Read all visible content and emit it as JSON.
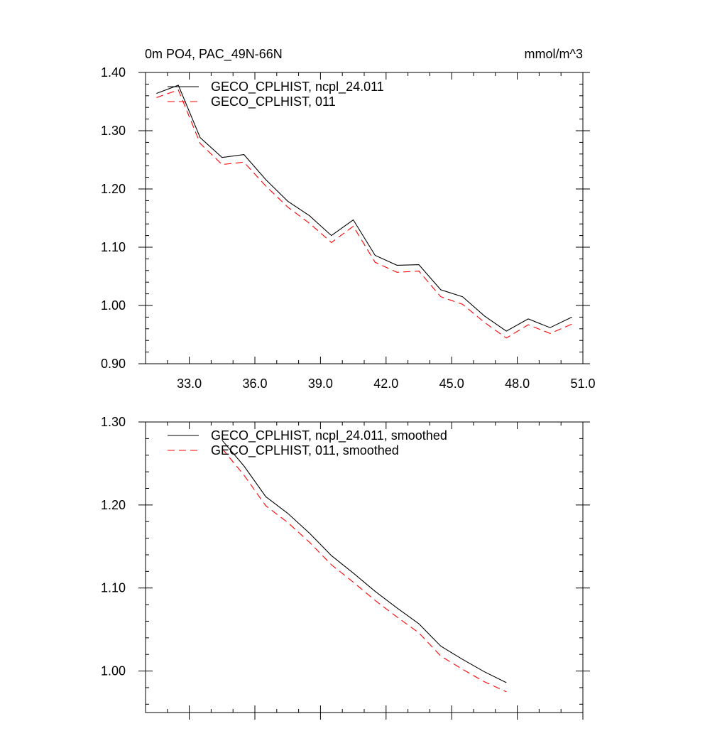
{
  "chart_data": [
    {
      "type": "line",
      "title": "0m PO4, PAC_49N-66N",
      "units": "mmol/m^3",
      "xlabel": "",
      "ylabel": "",
      "xlim": [
        31,
        51
      ],
      "ylim": [
        0.9,
        1.4
      ],
      "xticks": [
        "33.0",
        "36.0",
        "39.0",
        "42.0",
        "45.0",
        "48.0",
        "51.0"
      ],
      "yticks": [
        "0.90",
        "1.00",
        "1.10",
        "1.20",
        "1.30",
        "1.40"
      ],
      "legend": "top-left",
      "grid": false,
      "x": [
        31.5,
        32.5,
        33.5,
        34.5,
        35.5,
        36.5,
        37.5,
        38.5,
        39.5,
        40.5,
        41.5,
        42.5,
        43.5,
        44.5,
        45.5,
        46.5,
        47.5,
        48.5,
        49.5,
        50.5
      ],
      "series": [
        {
          "name": "GECO_CPLHIST, ncpl_24.011",
          "color": "#000000",
          "dash": "solid",
          "values": [
            1.364,
            1.378,
            1.288,
            1.254,
            1.259,
            1.216,
            1.179,
            1.154,
            1.12,
            1.147,
            1.086,
            1.069,
            1.07,
            1.027,
            1.015,
            0.982,
            0.956,
            0.977,
            0.962,
            0.98
          ]
        },
        {
          "name": "GECO_CPLHIST, 011",
          "color": "#ff0000",
          "dash": "dashed",
          "values": [
            1.357,
            1.37,
            1.278,
            1.242,
            1.246,
            1.205,
            1.169,
            1.141,
            1.108,
            1.136,
            1.074,
            1.057,
            1.059,
            1.015,
            1.002,
            0.971,
            0.944,
            0.967,
            0.952,
            0.968
          ]
        }
      ]
    },
    {
      "type": "line",
      "title": "",
      "xlabel": "",
      "ylabel": "",
      "xlim": [
        31,
        51
      ],
      "ylim": [
        0.95,
        1.3
      ],
      "yticks": [
        "1.00",
        "1.10",
        "1.20",
        "1.30"
      ],
      "legend": "top-left",
      "grid": false,
      "x": [
        34.5,
        35.5,
        36.5,
        37.5,
        38.5,
        39.5,
        40.5,
        41.5,
        42.5,
        43.5,
        44.5,
        45.5,
        46.5,
        47.5
      ],
      "series": [
        {
          "name": "GECO_CPLHIST, ncpl_24.011, smoothed",
          "color": "#000000",
          "dash": "solid",
          "values": [
            1.278,
            1.247,
            1.21,
            1.19,
            1.166,
            1.139,
            1.118,
            1.096,
            1.076,
            1.057,
            1.03,
            1.014,
            0.999,
            0.986
          ]
        },
        {
          "name": "GECO_CPLHIST, 011, smoothed",
          "color": "#ff0000",
          "dash": "dashed",
          "values": [
            1.268,
            1.236,
            1.199,
            1.179,
            1.155,
            1.128,
            1.107,
            1.085,
            1.065,
            1.046,
            1.018,
            1.002,
            0.987,
            0.975
          ]
        }
      ]
    }
  ]
}
